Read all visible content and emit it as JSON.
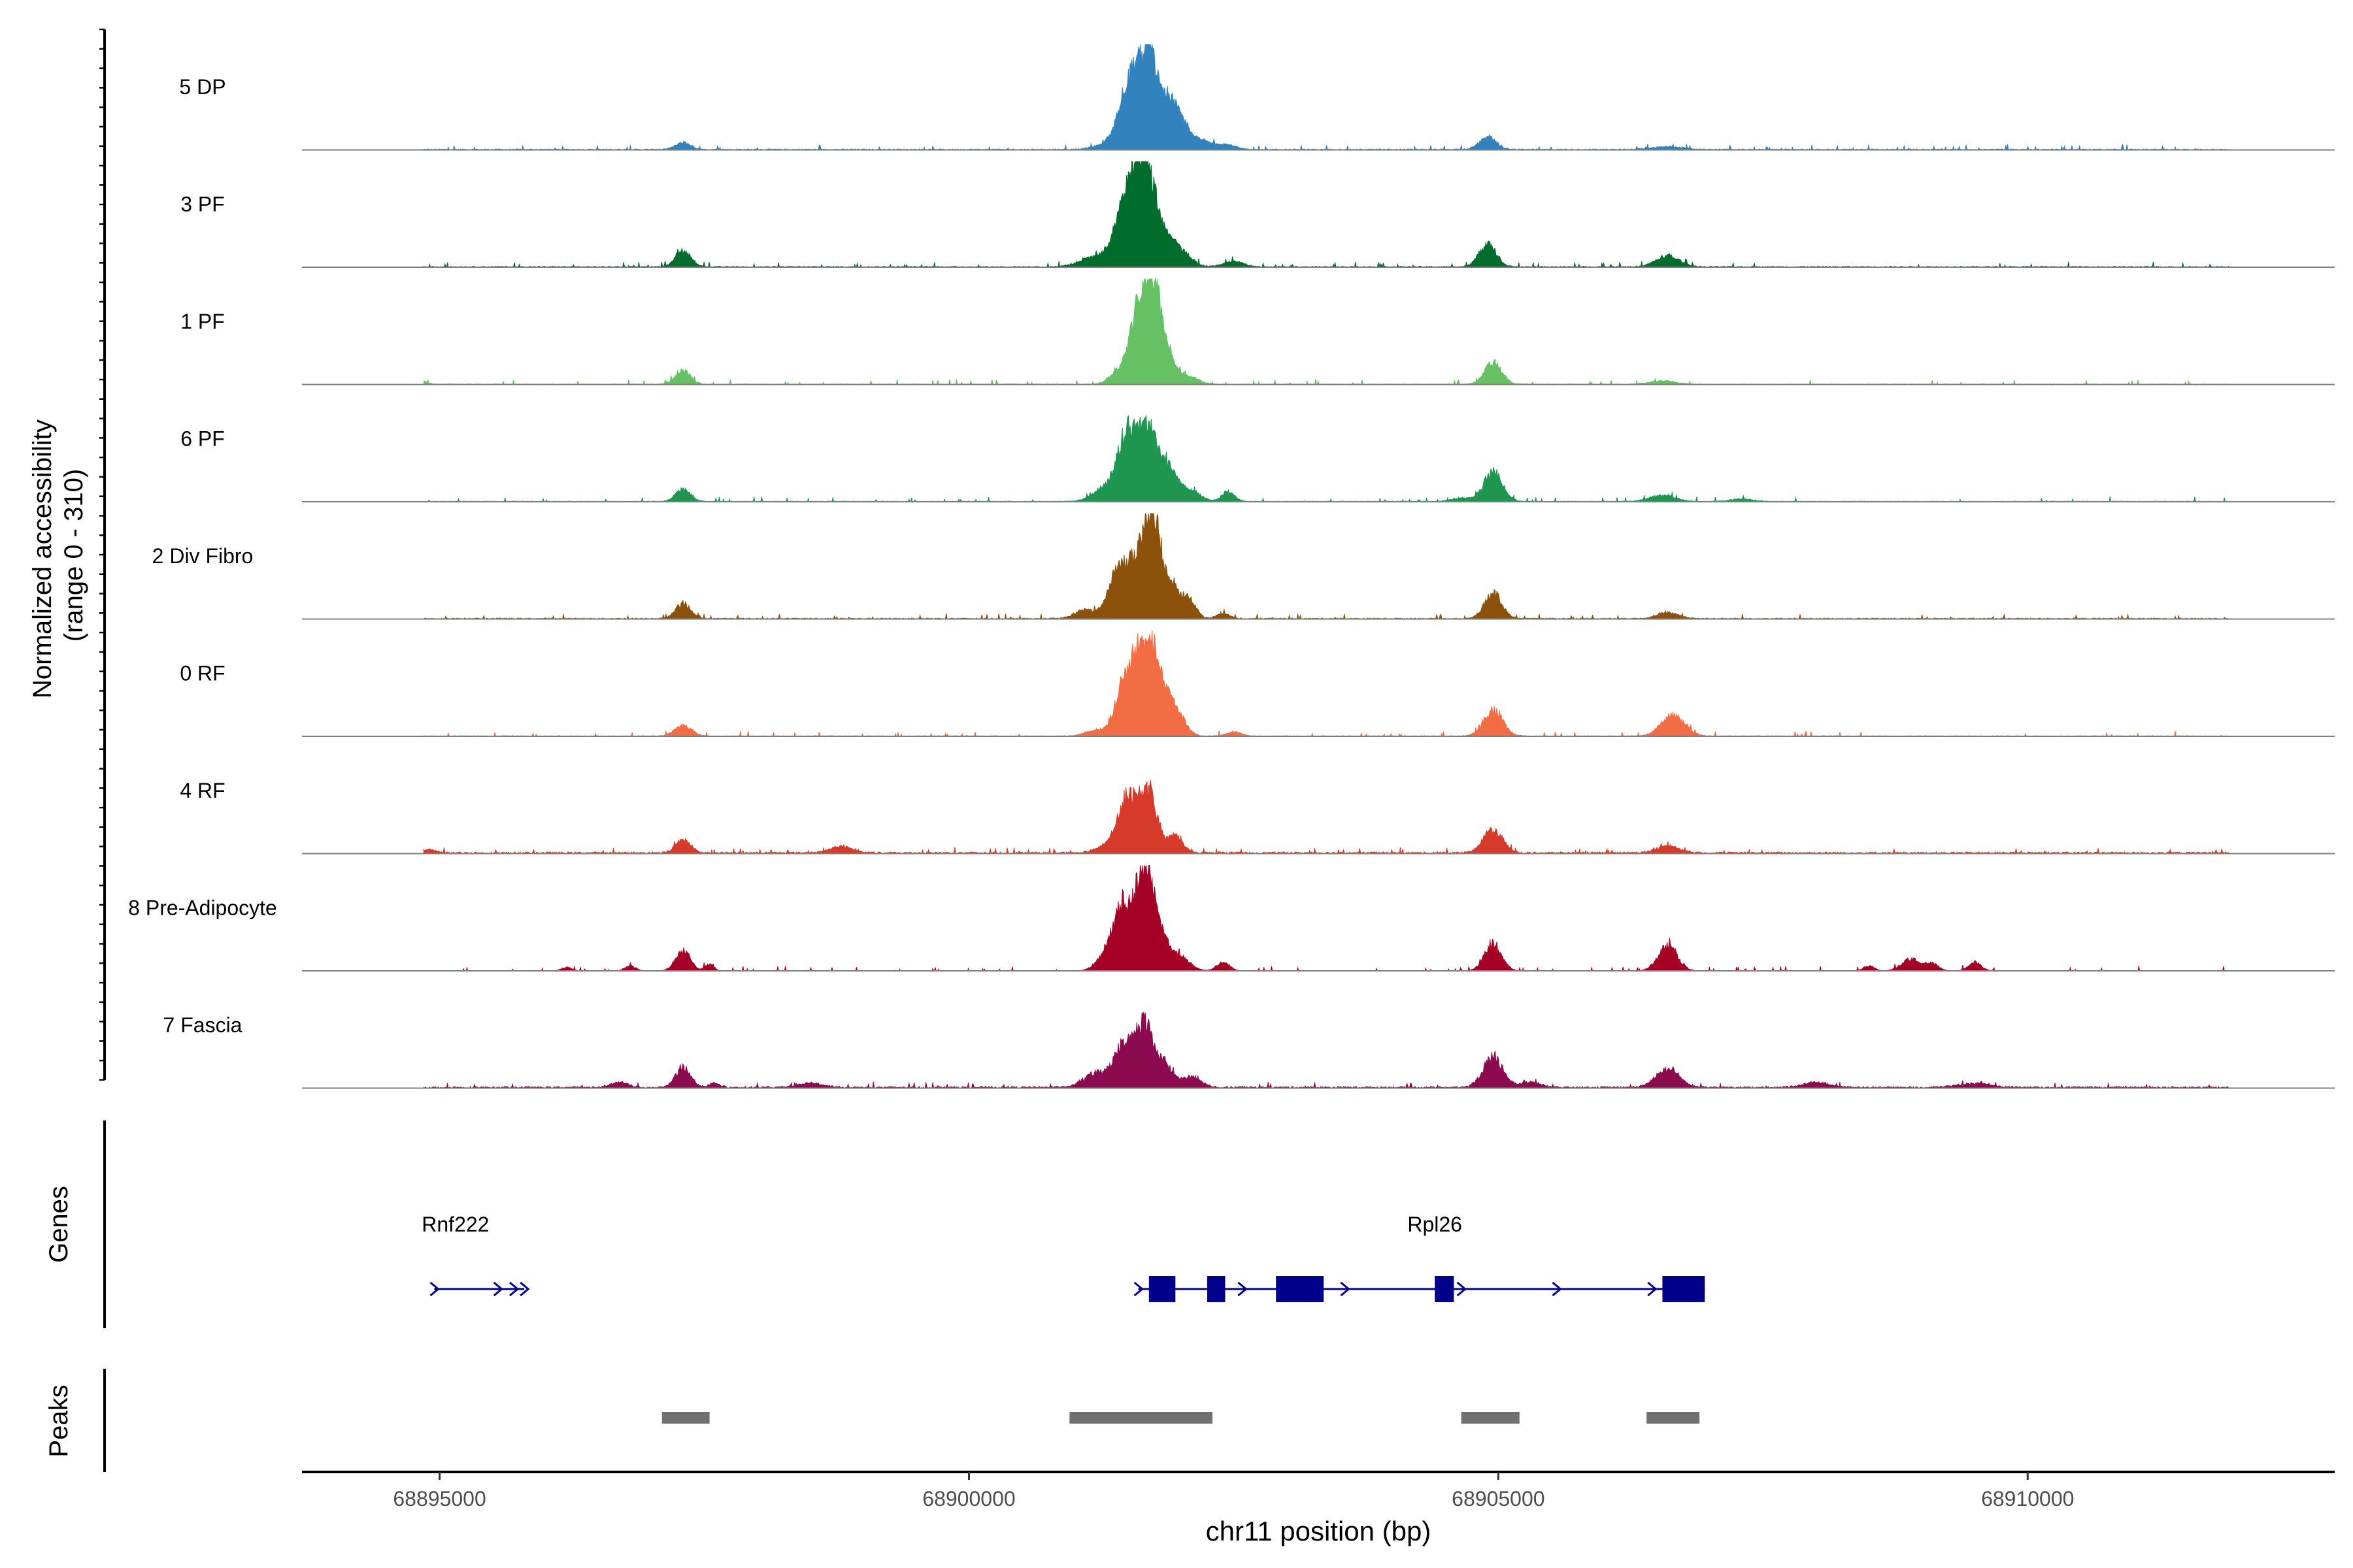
{
  "chart_data": {
    "type": "area",
    "title": "",
    "ylabel_line1": "Normalized accessibility",
    "ylabel_line2": "(range 0 - 310)",
    "xlabel": "chr11 position (bp)",
    "xlim": [
      68893700,
      68912900
    ],
    "ylim": [
      0,
      310
    ],
    "x_ticks": [
      68895000,
      68900000,
      68905000,
      68910000
    ],
    "x_tick_labels": [
      "68895000",
      "68900000",
      "68905000",
      "68910000"
    ],
    "signal_start": 68894850,
    "signal_end": 68911900,
    "tracks": [
      {
        "name": "5 DP",
        "color": "#3182bd",
        "base": 3,
        "peaks": [
          [
            68897300,
            20,
            70
          ],
          [
            68901300,
            14,
            120
          ],
          [
            68901450,
            30,
            60
          ],
          [
            68901550,
            180,
            110
          ],
          [
            68901700,
            220,
            90
          ],
          [
            68901900,
            110,
            90
          ],
          [
            68902000,
            40,
            110
          ],
          [
            68902200,
            22,
            120
          ],
          [
            68902450,
            12,
            80
          ],
          [
            68904900,
            35,
            80
          ],
          [
            68906600,
            8,
            150
          ]
        ]
      },
      {
        "name": "3 PF",
        "color": "#006d2c",
        "base": 3,
        "peaks": [
          [
            68897300,
            50,
            70
          ],
          [
            68901200,
            30,
            140
          ],
          [
            68901450,
            60,
            100
          ],
          [
            68901550,
            200,
            110
          ],
          [
            68901700,
            215,
            90
          ],
          [
            68901900,
            55,
            70
          ],
          [
            68902000,
            40,
            100
          ],
          [
            68902500,
            16,
            90
          ],
          [
            68904900,
            65,
            80
          ],
          [
            68906600,
            32,
            110
          ]
        ]
      },
      {
        "name": "1 PF",
        "color": "#66c164",
        "base": 2,
        "peaks": [
          [
            68894850,
            8,
            40
          ],
          [
            68897300,
            40,
            70
          ],
          [
            68901400,
            30,
            80
          ],
          [
            68901600,
            205,
            85
          ],
          [
            68901750,
            260,
            80
          ],
          [
            68901900,
            45,
            60
          ],
          [
            68902050,
            25,
            100
          ],
          [
            68904950,
            65,
            80
          ],
          [
            68906550,
            10,
            120
          ]
        ]
      },
      {
        "name": "6 PF",
        "color": "#1e9650",
        "base": 2,
        "peaks": [
          [
            68897300,
            35,
            70
          ],
          [
            68901300,
            40,
            120
          ],
          [
            68901500,
            190,
            90
          ],
          [
            68901700,
            200,
            90
          ],
          [
            68901900,
            85,
            80
          ],
          [
            68902100,
            30,
            90
          ],
          [
            68902450,
            30,
            60
          ],
          [
            68904650,
            10,
            90
          ],
          [
            68904950,
            85,
            90
          ],
          [
            68906550,
            18,
            120
          ],
          [
            68907300,
            8,
            100
          ]
        ]
      },
      {
        "name": "2 Div Fibro",
        "color": "#8c510a",
        "base": 3,
        "peaks": [
          [
            68897300,
            45,
            70
          ],
          [
            68901100,
            25,
            100
          ],
          [
            68901400,
            120,
            90
          ],
          [
            68901600,
            170,
            100
          ],
          [
            68901750,
            240,
            80
          ],
          [
            68901950,
            80,
            80
          ],
          [
            68902100,
            40,
            60
          ],
          [
            68902400,
            15,
            60
          ],
          [
            68904950,
            75,
            80
          ],
          [
            68906600,
            18,
            100
          ]
        ]
      },
      {
        "name": "0 RF",
        "color": "#f26d43",
        "base": 2,
        "peaks": [
          [
            68897300,
            30,
            80
          ],
          [
            68901200,
            18,
            100
          ],
          [
            68901450,
            120,
            80
          ],
          [
            68901600,
            205,
            85
          ],
          [
            68901750,
            210,
            80
          ],
          [
            68901900,
            70,
            60
          ],
          [
            68902000,
            45,
            70
          ],
          [
            68902500,
            12,
            70
          ],
          [
            68904950,
            75,
            90
          ],
          [
            68906650,
            60,
            110
          ]
        ]
      },
      {
        "name": "4 RF",
        "color": "#d63a2a",
        "base": 5,
        "peaks": [
          [
            68894900,
            10,
            60
          ],
          [
            68897300,
            40,
            70
          ],
          [
            68898800,
            20,
            100
          ],
          [
            68901300,
            20,
            100
          ],
          [
            68901500,
            160,
            90
          ],
          [
            68901700,
            170,
            80
          ],
          [
            68901950,
            50,
            70
          ],
          [
            68904950,
            70,
            90
          ],
          [
            68906600,
            20,
            110
          ]
        ]
      },
      {
        "name": "8 Pre-Adipocyte",
        "color": "#a50026",
        "base": 0,
        "peaks": [
          [
            68896200,
            10,
            50
          ],
          [
            68896800,
            15,
            50
          ],
          [
            68897300,
            60,
            70
          ],
          [
            68897550,
            20,
            40
          ],
          [
            68901300,
            50,
            90
          ],
          [
            68901450,
            180,
            80
          ],
          [
            68901650,
            300,
            80
          ],
          [
            68901800,
            100,
            80
          ],
          [
            68902000,
            40,
            90
          ],
          [
            68902400,
            25,
            60
          ],
          [
            68904950,
            80,
            80
          ],
          [
            68906600,
            75,
            90
          ],
          [
            68908500,
            15,
            50
          ],
          [
            68908900,
            35,
            90
          ],
          [
            68909100,
            20,
            60
          ],
          [
            68909500,
            25,
            60
          ]
        ]
      },
      {
        "name": "7 Fascia",
        "color": "#8b0a50",
        "base": 5,
        "peaks": [
          [
            68896700,
            15,
            80
          ],
          [
            68897300,
            60,
            70
          ],
          [
            68897600,
            12,
            50
          ],
          [
            68898500,
            12,
            120
          ],
          [
            68901200,
            40,
            120
          ],
          [
            68901450,
            110,
            90
          ],
          [
            68901650,
            180,
            90
          ],
          [
            68901850,
            60,
            80
          ],
          [
            68902100,
            30,
            90
          ],
          [
            68904950,
            90,
            90
          ],
          [
            68905300,
            15,
            100
          ],
          [
            68906600,
            55,
            110
          ],
          [
            68908000,
            15,
            120
          ],
          [
            68909500,
            12,
            150
          ]
        ]
      }
    ],
    "genes_label": "Genes",
    "gene_color": "#00008b",
    "genes": [
      {
        "name": "Rnf222",
        "start": 68894950,
        "end": 68895800,
        "label_x": 68895150,
        "exons": [],
        "arrows": [
          68894950,
          68895550,
          68895700,
          68895800
        ]
      },
      {
        "name": "Rpl26",
        "start": 68901600,
        "end": 68906950,
        "label_x": 68904400,
        "exons": [
          [
            68901700,
            68901950
          ],
          [
            68902250,
            68902420
          ],
          [
            68902900,
            68903350
          ],
          [
            68904400,
            68904580
          ],
          [
            68906550,
            68906950
          ]
        ],
        "arrows": [
          68901600,
          68902580,
          68903550,
          68904650,
          68905550,
          68906450
        ]
      }
    ],
    "peaks_label": "Peaks",
    "peak_color": "#707070",
    "peak_regions": [
      [
        68897100,
        68897550
      ],
      [
        68900950,
        68902300
      ],
      [
        68904650,
        68905200
      ],
      [
        68906400,
        68906900
      ]
    ]
  }
}
